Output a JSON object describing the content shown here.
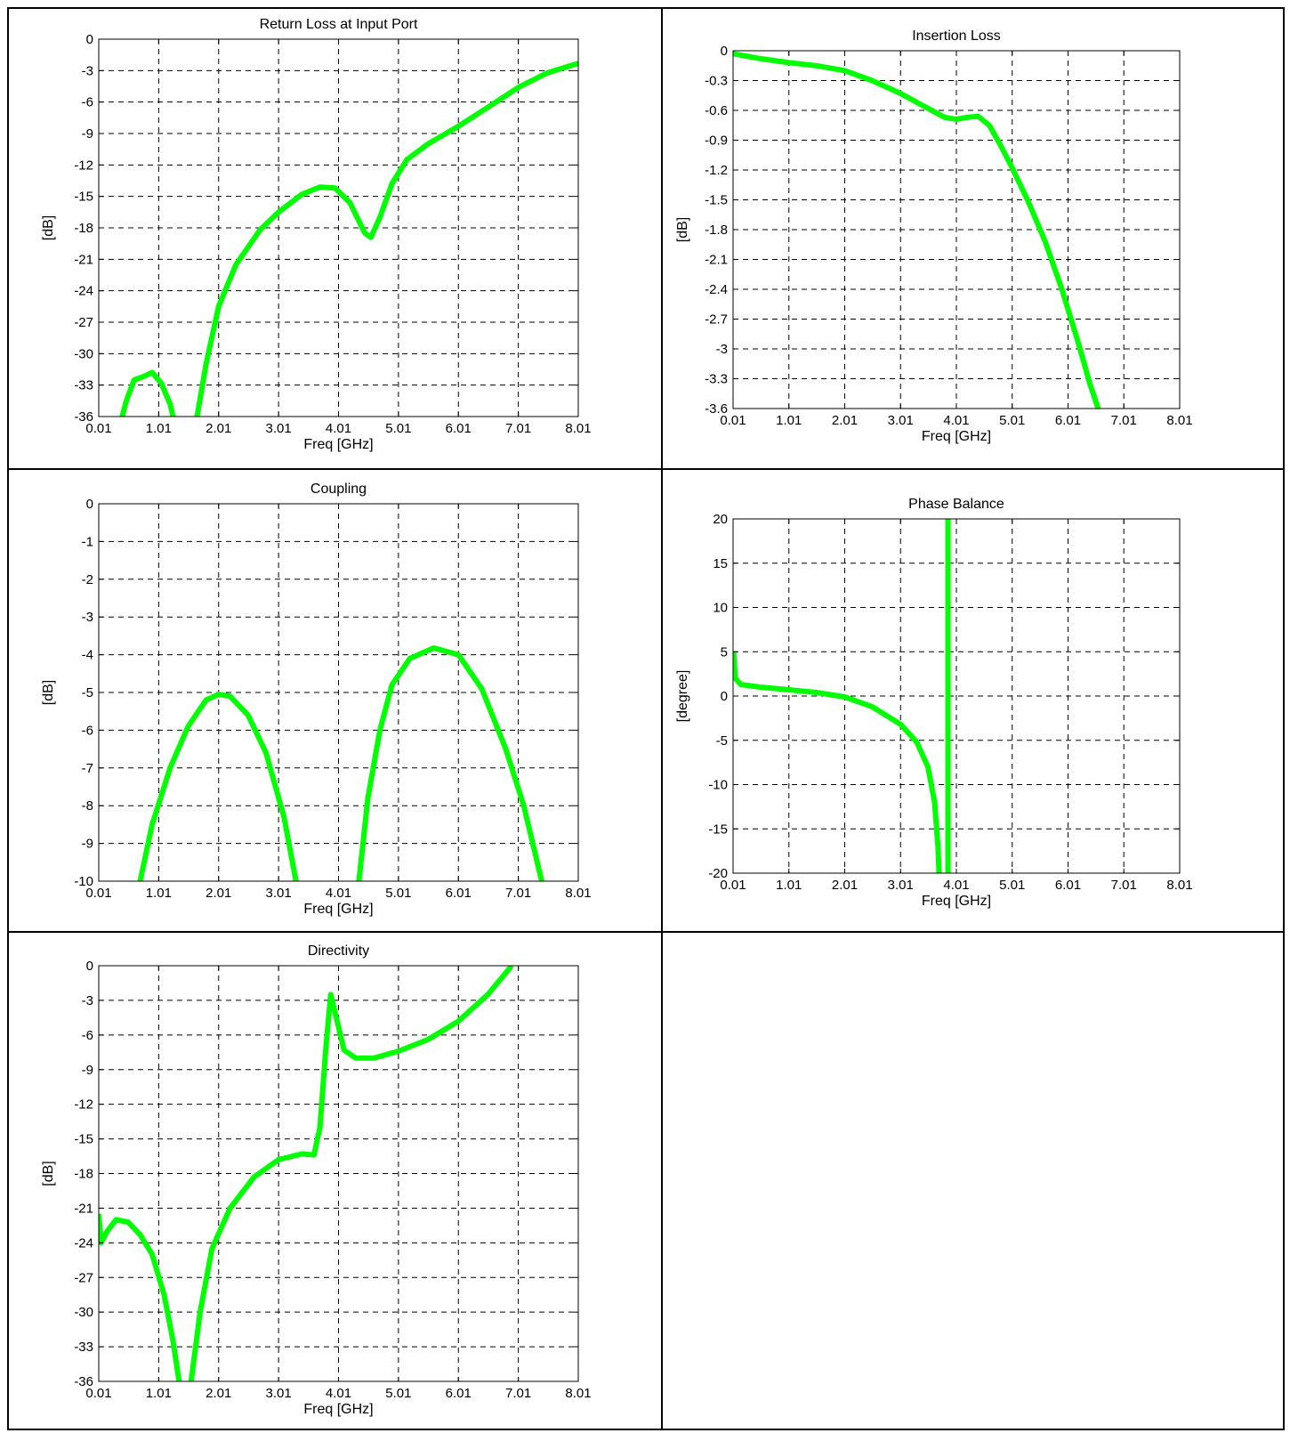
{
  "chart_data": [
    {
      "type": "line",
      "title": "Return Loss at Input Port",
      "xlabel": "Freq [GHz]",
      "ylabel": "[dB]",
      "xlim": [
        0.01,
        8.01
      ],
      "ylim": [
        -36,
        0
      ],
      "xticks": [
        0.01,
        1.01,
        2.01,
        3.01,
        4.01,
        5.01,
        6.01,
        7.01,
        8.01
      ],
      "yticks": [
        0,
        -3,
        -6,
        -9,
        -12,
        -15,
        -18,
        -21,
        -24,
        -27,
        -30,
        -33,
        -36
      ],
      "grid": true,
      "line_color": "#00ff00",
      "segments": [
        [
          [
            0.4,
            -36
          ],
          [
            0.47,
            -34.5
          ],
          [
            0.6,
            -32.5
          ],
          [
            0.75,
            -32.2
          ],
          [
            0.9,
            -31.8
          ],
          [
            1.05,
            -32.8
          ],
          [
            1.2,
            -34.8
          ],
          [
            1.25,
            -36
          ]
        ],
        [
          [
            1.65,
            -36
          ],
          [
            1.8,
            -31
          ],
          [
            2.01,
            -25.5
          ],
          [
            2.3,
            -21.5
          ],
          [
            2.7,
            -18.2
          ],
          [
            3.01,
            -16.5
          ],
          [
            3.4,
            -14.8
          ],
          [
            3.7,
            -14.1
          ],
          [
            3.95,
            -14.2
          ],
          [
            4.2,
            -15.6
          ],
          [
            4.45,
            -18.5
          ],
          [
            4.55,
            -18.9
          ],
          [
            4.7,
            -17.0
          ],
          [
            4.9,
            -13.8
          ],
          [
            5.15,
            -11.5
          ],
          [
            5.5,
            -10
          ],
          [
            6.01,
            -8.3
          ],
          [
            6.5,
            -6.5
          ],
          [
            7.01,
            -4.6
          ],
          [
            7.5,
            -3.2
          ],
          [
            8.01,
            -2.3
          ]
        ]
      ]
    },
    {
      "type": "line",
      "title": "Insertion Loss",
      "xlabel": "Freq [GHz]",
      "ylabel": "[dB]",
      "xlim": [
        0.01,
        8.01
      ],
      "ylim": [
        -3.6,
        0
      ],
      "xticks": [
        0.01,
        1.01,
        2.01,
        3.01,
        4.01,
        5.01,
        6.01,
        7.01,
        8.01
      ],
      "yticks": [
        0,
        -0.3,
        -0.6,
        -0.9,
        -1.2,
        -1.5,
        -1.8,
        -2.1,
        -2.4,
        -2.7,
        -3,
        -3.3,
        -3.6
      ],
      "grid": true,
      "line_color": "#00ff00",
      "segments": [
        [
          [
            0.01,
            -0.03
          ],
          [
            0.5,
            -0.08
          ],
          [
            1.01,
            -0.12
          ],
          [
            1.5,
            -0.15
          ],
          [
            2.01,
            -0.2
          ],
          [
            2.5,
            -0.3
          ],
          [
            3.01,
            -0.43
          ],
          [
            3.5,
            -0.58
          ],
          [
            3.8,
            -0.67
          ],
          [
            4.01,
            -0.69
          ],
          [
            4.2,
            -0.67
          ],
          [
            4.4,
            -0.66
          ],
          [
            4.6,
            -0.75
          ],
          [
            4.8,
            -0.95
          ],
          [
            5.01,
            -1.18
          ],
          [
            5.3,
            -1.52
          ],
          [
            5.6,
            -1.92
          ],
          [
            5.9,
            -2.4
          ],
          [
            6.2,
            -2.95
          ],
          [
            6.4,
            -3.35
          ],
          [
            6.55,
            -3.6
          ]
        ]
      ]
    },
    {
      "type": "line",
      "title": "Coupling",
      "xlabel": "Freq [GHz]",
      "ylabel": "[dB]",
      "xlim": [
        0.01,
        8.01
      ],
      "ylim": [
        -10,
        0
      ],
      "xticks": [
        0.01,
        1.01,
        2.01,
        3.01,
        4.01,
        5.01,
        6.01,
        7.01,
        8.01
      ],
      "yticks": [
        0,
        -1,
        -2,
        -3,
        -4,
        -5,
        -6,
        -7,
        -8,
        -9,
        -10
      ],
      "grid": true,
      "line_color": "#00ff00",
      "segments": [
        [
          [
            0.7,
            -10
          ],
          [
            0.9,
            -8.5
          ],
          [
            1.2,
            -7.0
          ],
          [
            1.5,
            -5.9
          ],
          [
            1.8,
            -5.2
          ],
          [
            2.01,
            -5.05
          ],
          [
            2.2,
            -5.1
          ],
          [
            2.5,
            -5.6
          ],
          [
            2.8,
            -6.6
          ],
          [
            3.1,
            -8.3
          ],
          [
            3.3,
            -10
          ]
        ],
        [
          [
            4.35,
            -10
          ],
          [
            4.5,
            -7.8
          ],
          [
            4.7,
            -6.0
          ],
          [
            4.9,
            -4.8
          ],
          [
            5.2,
            -4.1
          ],
          [
            5.6,
            -3.82
          ],
          [
            6.01,
            -4.0
          ],
          [
            6.4,
            -4.9
          ],
          [
            6.8,
            -6.5
          ],
          [
            7.1,
            -8.0
          ],
          [
            7.4,
            -10
          ]
        ]
      ]
    },
    {
      "type": "line",
      "title": "Phase Balance",
      "xlabel": "Freq [GHz]",
      "ylabel": "[degree]",
      "xlim": [
        0.01,
        8.01
      ],
      "ylim": [
        -20,
        20
      ],
      "xticks": [
        0.01,
        1.01,
        2.01,
        3.01,
        4.01,
        5.01,
        6.01,
        7.01,
        8.01
      ],
      "yticks": [
        20,
        15,
        10,
        5,
        0,
        -5,
        -10,
        -15,
        -20
      ],
      "grid": true,
      "line_color": "#00ff00",
      "segments": [
        [
          [
            0.02,
            5
          ],
          [
            0.05,
            2
          ],
          [
            0.15,
            1.3
          ],
          [
            0.5,
            1.0
          ],
          [
            1.01,
            0.7
          ],
          [
            1.5,
            0.4
          ],
          [
            2.01,
            -0.1
          ],
          [
            2.5,
            -1.2
          ],
          [
            3.01,
            -3.2
          ],
          [
            3.3,
            -5.2
          ],
          [
            3.5,
            -8
          ],
          [
            3.62,
            -12
          ],
          [
            3.68,
            -17
          ],
          [
            3.7,
            -20
          ]
        ],
        [
          [
            3.86,
            -20
          ],
          [
            3.86,
            20
          ]
        ]
      ]
    },
    {
      "type": "line",
      "title": "Directivity",
      "xlabel": "Freq [GHz]",
      "ylabel": "[dB]",
      "xlim": [
        0.01,
        8.01
      ],
      "ylim": [
        -36,
        0
      ],
      "xticks": [
        0.01,
        1.01,
        2.01,
        3.01,
        4.01,
        5.01,
        6.01,
        7.01,
        8.01
      ],
      "yticks": [
        0,
        -3,
        -6,
        -9,
        -12,
        -15,
        -18,
        -21,
        -24,
        -27,
        -30,
        -33,
        -36
      ],
      "grid": true,
      "line_color": "#00ff00",
      "segments": [
        [
          [
            0.01,
            -21.5
          ],
          [
            0.05,
            -24
          ],
          [
            0.15,
            -23
          ],
          [
            0.3,
            -22.0
          ],
          [
            0.5,
            -22.2
          ],
          [
            0.7,
            -23.3
          ],
          [
            0.9,
            -25
          ],
          [
            1.1,
            -28.5
          ],
          [
            1.25,
            -32.5
          ],
          [
            1.35,
            -36
          ]
        ],
        [
          [
            1.55,
            -36
          ],
          [
            1.7,
            -30
          ],
          [
            1.9,
            -24.5
          ],
          [
            2.2,
            -21
          ],
          [
            2.6,
            -18.3
          ],
          [
            3.01,
            -16.8
          ],
          [
            3.4,
            -16.3
          ],
          [
            3.6,
            -16.4
          ],
          [
            3.7,
            -14
          ],
          [
            3.8,
            -7
          ],
          [
            3.88,
            -2.5
          ],
          [
            3.95,
            -4
          ],
          [
            4.1,
            -7.3
          ],
          [
            4.3,
            -8.0
          ],
          [
            4.6,
            -8.0
          ],
          [
            5.01,
            -7.4
          ],
          [
            5.5,
            -6.4
          ],
          [
            6.01,
            -4.8
          ],
          [
            6.5,
            -2.5
          ],
          [
            6.9,
            0
          ]
        ]
      ]
    }
  ]
}
